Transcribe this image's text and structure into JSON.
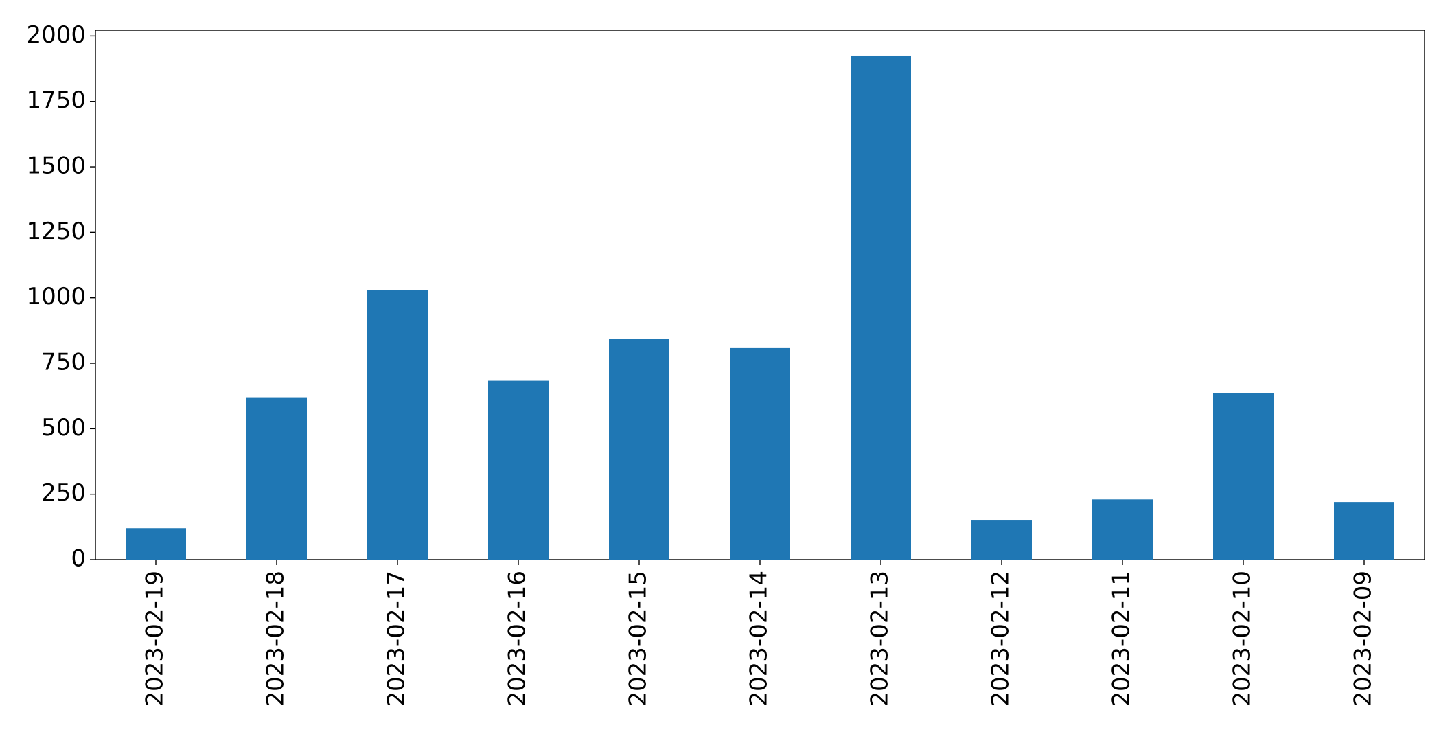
{
  "chart_data": {
    "type": "bar",
    "categories": [
      "2023-02-19",
      "2023-02-18",
      "2023-02-17",
      "2023-02-16",
      "2023-02-15",
      "2023-02-14",
      "2023-02-13",
      "2023-02-12",
      "2023-02-11",
      "2023-02-10",
      "2023-02-09"
    ],
    "values": [
      120,
      620,
      1030,
      683,
      844,
      808,
      1925,
      152,
      230,
      635,
      220
    ],
    "color": "#1f77b4",
    "ylim": [
      0,
      2022
    ],
    "yticks": [
      0,
      250,
      500,
      750,
      1000,
      1250,
      1500,
      1750,
      2000
    ],
    "grid": false
  }
}
